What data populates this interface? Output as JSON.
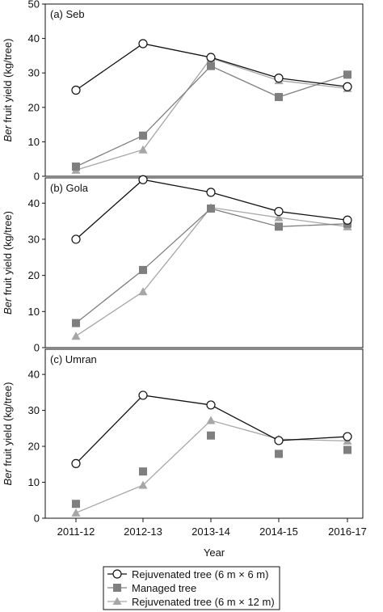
{
  "chart_data": [
    {
      "type": "line",
      "title": "(a) Seb",
      "categories": [
        "2011-12",
        "2012-13",
        "2013-14",
        "2014-15",
        "2016-17"
      ],
      "ylabel_italic": "Ber",
      "ylabel_rest": " fruit yield (kg/tree)",
      "ylim": [
        0,
        50
      ],
      "yticks": [
        0,
        10,
        20,
        30,
        40,
        50
      ],
      "series": [
        {
          "name": "Rejuvenated tree (6 m × 6 m)",
          "values": [
            25,
            38.5,
            34.5,
            28.5,
            26
          ],
          "color": "#111111",
          "marker": "circle"
        },
        {
          "name": "Managed tree",
          "values": [
            2.8,
            11.8,
            32,
            23,
            29.5
          ],
          "color": "#7f7f7f",
          "marker": "square"
        },
        {
          "name": "Rejuvenated tree (6 m × 12 m)",
          "values": [
            1.8,
            7.7,
            34.3,
            27.8,
            25.5
          ],
          "color": "#a6a6a6",
          "marker": "triangle"
        }
      ]
    },
    {
      "type": "line",
      "title": "(b) Gola",
      "categories": [
        "2011-12",
        "2012-13",
        "2013-14",
        "2014-15",
        "2016-17"
      ],
      "ylabel_italic": "Ber",
      "ylabel_rest": " fruit yield (kg/tree)",
      "ylim": [
        0,
        47
      ],
      "yticks": [
        0,
        10,
        20,
        30,
        40
      ],
      "series": [
        {
          "name": "Rejuvenated tree (6 m × 6 m)",
          "values": [
            30,
            46.5,
            43,
            37.7,
            35.3
          ],
          "color": "#111111",
          "marker": "circle"
        },
        {
          "name": "Managed tree",
          "values": [
            6.8,
            21.5,
            38.5,
            33.5,
            34.3
          ],
          "color": "#7f7f7f",
          "marker": "square"
        },
        {
          "name": "Rejuvenated tree (6 m × 12 m)",
          "values": [
            3.2,
            15.5,
            38.8,
            36,
            33.5
          ],
          "color": "#a6a6a6",
          "marker": "triangle"
        }
      ]
    },
    {
      "type": "line",
      "title": "(c) Umran",
      "categories": [
        "2011-12",
        "2012-13",
        "2013-14",
        "2014-15",
        "2016-17"
      ],
      "ylabel_italic": "Ber",
      "ylabel_rest": " fruit yield (kg/tree)",
      "xlabel": "Year",
      "ylim": [
        0,
        47
      ],
      "yticks": [
        0,
        10,
        20,
        30,
        40
      ],
      "series": [
        {
          "name": "Rejuvenated tree (6 m × 6 m)",
          "values": [
            15.2,
            34.2,
            31.5,
            21.6,
            22.7
          ],
          "color": "#111111",
          "marker": "circle"
        },
        {
          "name": "Managed tree",
          "values": [
            4,
            13,
            23,
            17.9,
            19
          ],
          "color": "#7f7f7f",
          "marker": "square",
          "connected": false
        },
        {
          "name": "Rejuvenated tree (6 m × 12 m)",
          "values": [
            1.5,
            9.2,
            27.2,
            22,
            21.5
          ],
          "color": "#a6a6a6",
          "marker": "triangle"
        }
      ]
    }
  ],
  "legend": {
    "placement": "bottom",
    "items": [
      {
        "label": "Rejuvenated tree (6 m × 6 m)",
        "marker": "circle",
        "color": "#111111"
      },
      {
        "label": "Managed tree",
        "marker": "square",
        "color": "#7f7f7f"
      },
      {
        "label": "Rejuvenated tree (6 m × 12 m)",
        "marker": "triangle",
        "color": "#a6a6a6"
      }
    ]
  }
}
